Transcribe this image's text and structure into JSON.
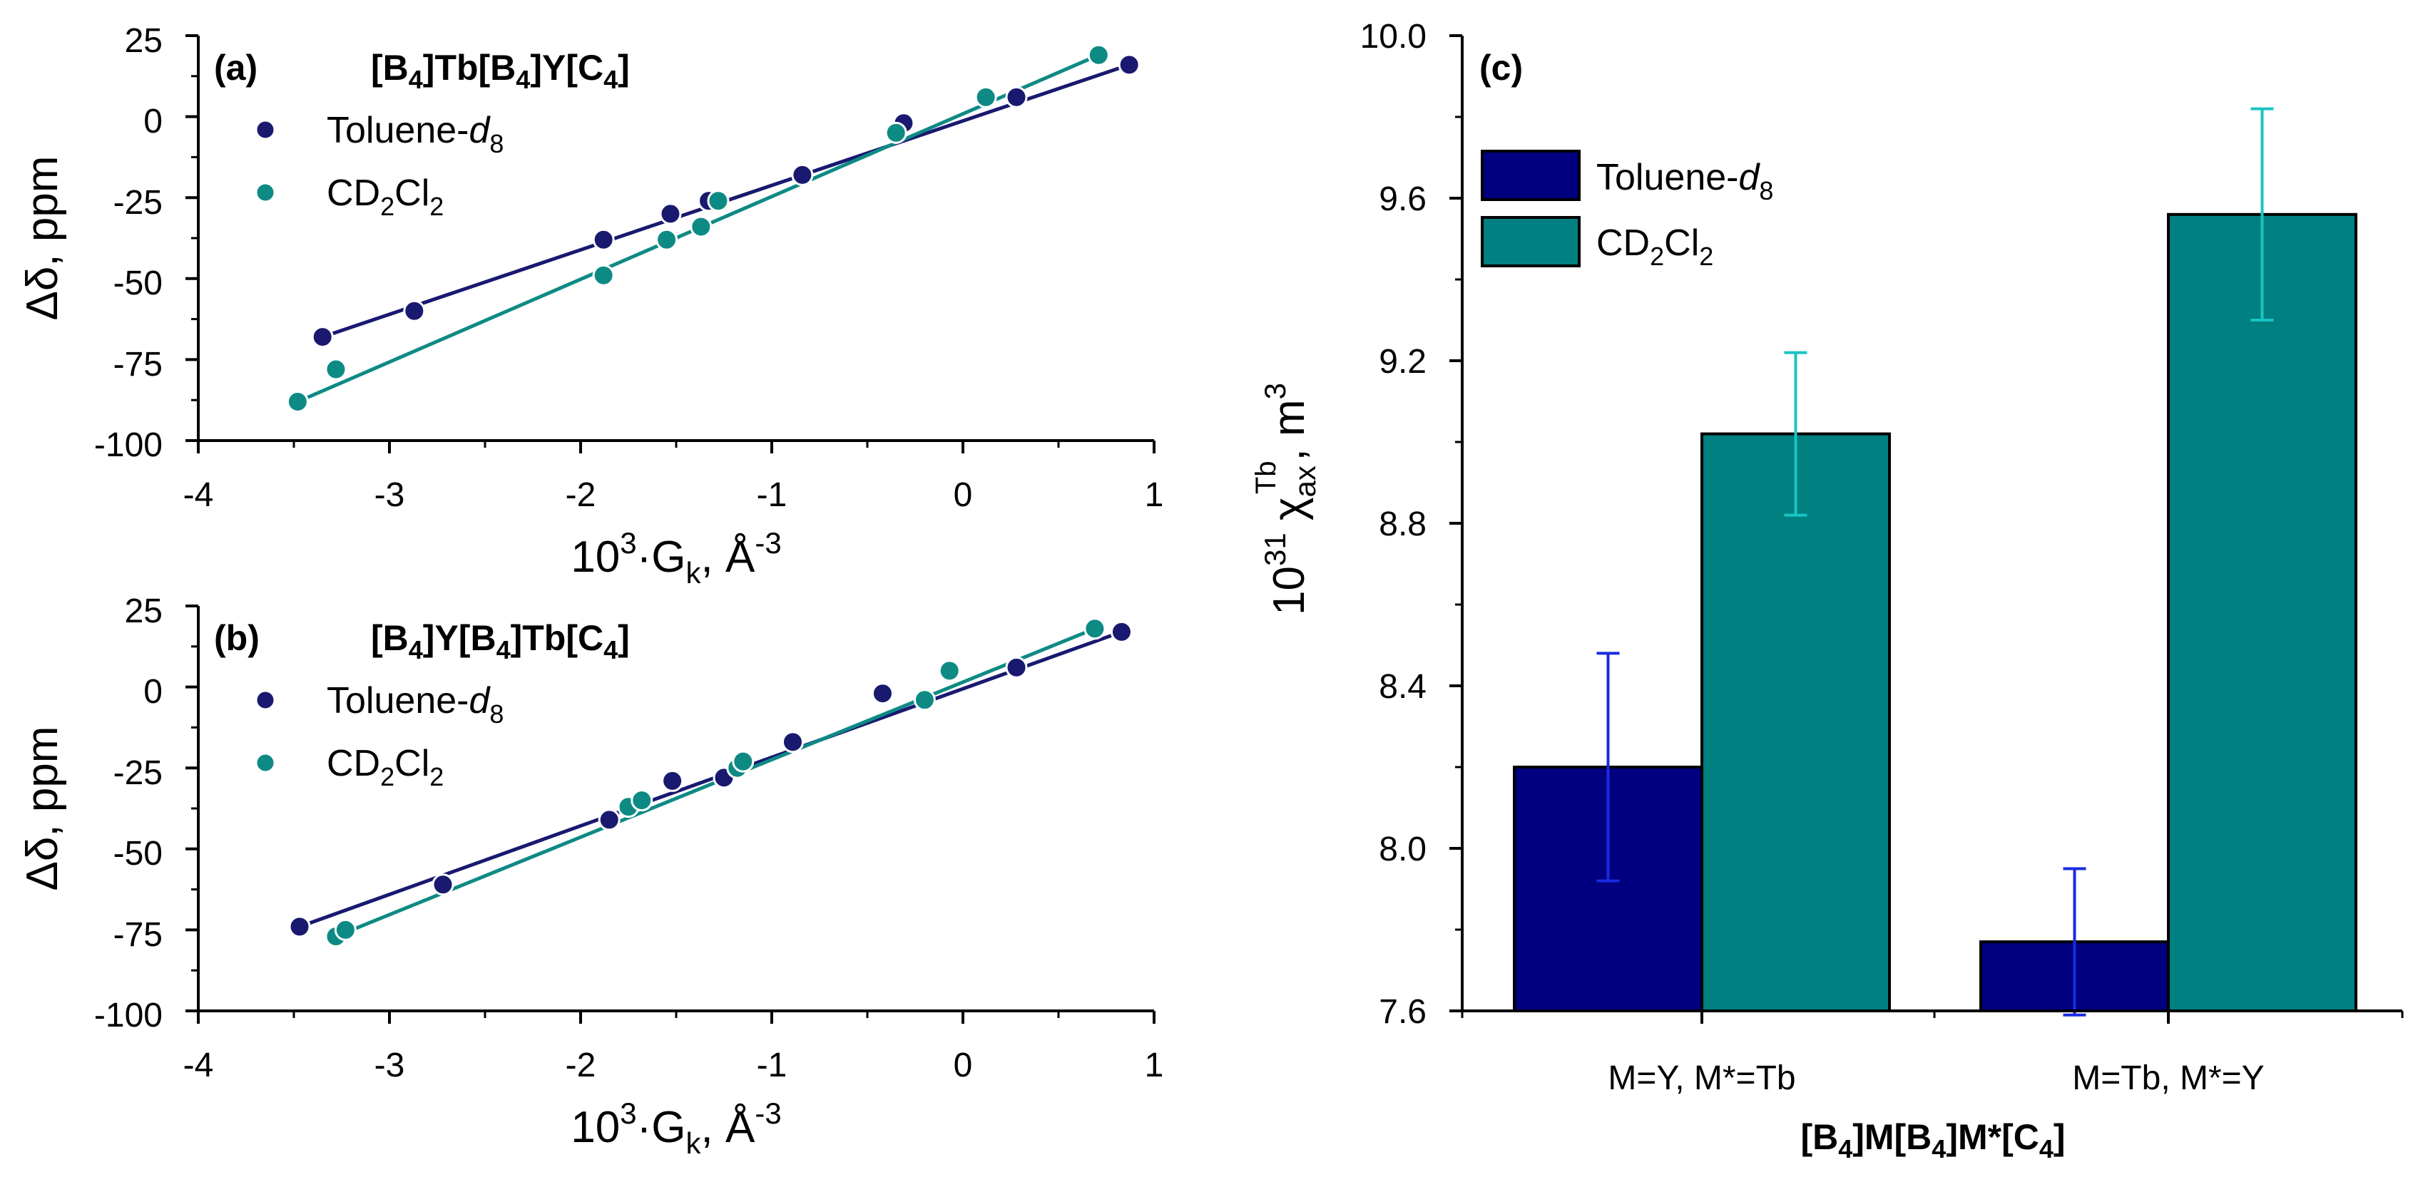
{
  "colors": {
    "toluene": "#191970",
    "cd2cl2": "#0e8a85",
    "bar_toluene": "#000080",
    "bar_cd2cl2": "#008080",
    "err_toluene": "#1a2be0",
    "err_cd2cl2": "#19c4c4"
  },
  "chart_data": [
    {
      "id": "a",
      "type": "scatter",
      "panel_label": "(a)",
      "title": {
        "p1": "[B",
        "s1": "4",
        "p2": "]Tb[B",
        "s2": "4",
        "p3": "]Y[C",
        "s3": "4",
        "p4": "]"
      },
      "xlabel": {
        "p1": "10",
        "sup": "3",
        "p2": "·G",
        "sub": "k",
        "p3": ", Å",
        "sup2": "-3"
      },
      "ylabel": "Δδ, ppm",
      "xlim": [
        -4,
        1
      ],
      "ylim": [
        -100,
        25
      ],
      "xticks": [
        "-4",
        "-3",
        "-2",
        "-1",
        "0",
        "1"
      ],
      "yticks": [
        "25",
        "0",
        "-25",
        "-50",
        "-75",
        "-100"
      ],
      "legend": [
        {
          "name": "Toluene-",
          "italic": "d",
          "sub": "8"
        },
        {
          "name": "CD",
          "sub1": "2",
          "mid": "Cl",
          "sub2": "2"
        }
      ],
      "series": [
        {
          "name": "Toluene-d8",
          "x": [
            -3.35,
            -2.87,
            -1.88,
            -1.53,
            -1.33,
            -0.84,
            -0.31,
            0.28,
            0.87
          ],
          "y": [
            -68,
            -60,
            -38,
            -30,
            -26,
            -18,
            -2,
            6,
            16
          ],
          "fit": [
            [
              -3.35,
              -68
            ],
            [
              0.87,
              16
            ]
          ]
        },
        {
          "name": "CD2Cl2",
          "x": [
            -3.48,
            -3.28,
            -1.88,
            -1.55,
            -1.37,
            -1.28,
            -0.35,
            0.12,
            0.71
          ],
          "y": [
            -88,
            -78,
            -49,
            -38,
            -34,
            -26,
            -5,
            6,
            19
          ],
          "fit": [
            [
              -3.48,
              -88
            ],
            [
              0.71,
              19
            ]
          ]
        }
      ]
    },
    {
      "id": "b",
      "type": "scatter",
      "panel_label": "(b)",
      "title": {
        "p1": "[B",
        "s1": "4",
        "p2": "]Y[B",
        "s2": "4",
        "p3": "]Tb[C",
        "s3": "4",
        "p4": "]"
      },
      "xlabel": {
        "p1": "10",
        "sup": "3",
        "p2": "·G",
        "sub": "k",
        "p3": ", Å",
        "sup2": "-3"
      },
      "ylabel": "Δδ, ppm",
      "xlim": [
        -4,
        1
      ],
      "ylim": [
        -100,
        25
      ],
      "xticks": [
        "-4",
        "-3",
        "-2",
        "-1",
        "0",
        "1"
      ],
      "yticks": [
        "25",
        "0",
        "-25",
        "-50",
        "-75",
        "-100"
      ],
      "legend": [
        {
          "name": "Toluene-",
          "italic": "d",
          "sub": "8"
        },
        {
          "name": "CD",
          "sub1": "2",
          "mid": "Cl",
          "sub2": "2"
        }
      ],
      "series": [
        {
          "name": "Toluene-d8",
          "x": [
            -3.47,
            -2.72,
            -1.85,
            -1.52,
            -1.25,
            -0.89,
            -0.42,
            0.28,
            0.83
          ],
          "y": [
            -74,
            -61,
            -41,
            -29,
            -28,
            -17,
            -2,
            6,
            17
          ],
          "fit": [
            [
              -3.47,
              -74
            ],
            [
              0.83,
              17
            ]
          ]
        },
        {
          "name": "CD2Cl2",
          "x": [
            -3.28,
            -3.23,
            -1.75,
            -1.68,
            -1.18,
            -1.15,
            -0.2,
            -0.07,
            0.69
          ],
          "y": [
            -77,
            -75,
            -37,
            -35,
            -25,
            -23,
            -4,
            5,
            18
          ],
          "fit": [
            [
              -3.28,
              -77
            ],
            [
              0.69,
              18
            ]
          ]
        }
      ]
    },
    {
      "id": "c",
      "type": "bar",
      "panel_label": "(c)",
      "categories": [
        "M=Y, M*=Tb",
        "M=Tb, M*=Y"
      ],
      "series": [
        {
          "name": "Toluene-d8",
          "values": [
            8.2,
            7.77
          ],
          "errors": [
            0.28,
            0.18
          ]
        },
        {
          "name": "CD2Cl2",
          "values": [
            9.02,
            9.56
          ],
          "errors": [
            0.2,
            0.26
          ]
        }
      ],
      "legend": [
        {
          "name": "Toluene-",
          "italic": "d",
          "sub": "8"
        },
        {
          "name": "CD",
          "sub1": "2",
          "mid": "Cl",
          "sub2": "2"
        }
      ],
      "ylim": [
        7.6,
        10.0
      ],
      "yticks": [
        "10.0",
        "9.6",
        "9.2",
        "8.8",
        "8.4",
        "8.0",
        "7.6"
      ],
      "ylabel": {
        "p1": "10",
        "sup": "31",
        "p2": " χ",
        "sub": "ax",
        "supTb": "Tb",
        "p3": ", m",
        "sup2": "3"
      },
      "xlabel": {
        "p1": "[B",
        "s1": "4",
        "p2": "]M[B",
        "s2": "4",
        "p3": "]M*[C",
        "s3": "4",
        "p4": "]"
      }
    }
  ]
}
